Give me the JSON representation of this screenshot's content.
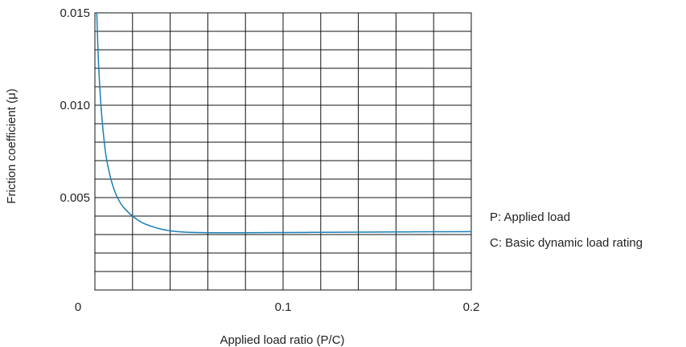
{
  "chart_data": {
    "type": "line",
    "title": "",
    "xlabel": "Applied load ratio (P/C)",
    "ylabel": "Friction coefficient (μ)",
    "xlim": [
      0,
      0.2
    ],
    "ylim": [
      0,
      0.015
    ],
    "x_ticks": [
      {
        "value": 0,
        "label": "0"
      },
      {
        "value": 0.1,
        "label": "0.1"
      },
      {
        "value": 0.2,
        "label": "0.2"
      }
    ],
    "y_ticks": [
      {
        "value": 0.005,
        "label": "0.005"
      },
      {
        "value": 0.01,
        "label": "0.010"
      },
      {
        "value": 0.015,
        "label": "0.015"
      }
    ],
    "grid": true,
    "grid_x_divisions": 10,
    "grid_y_divisions": 15,
    "series": [
      {
        "color": "#1a7fb5",
        "x": [
          0.001,
          0.0015,
          0.002,
          0.003,
          0.004,
          0.005,
          0.006,
          0.008,
          0.01,
          0.012,
          0.015,
          0.02,
          0.025,
          0.03,
          0.035,
          0.04,
          0.045,
          0.05,
          0.06,
          0.08,
          0.1,
          0.12,
          0.14,
          0.16,
          0.18,
          0.2
        ],
        "y": [
          0.015,
          0.0134,
          0.0121,
          0.0103,
          0.009,
          0.008,
          0.0072,
          0.0062,
          0.0055,
          0.005,
          0.0045,
          0.004,
          0.00365,
          0.00345,
          0.0033,
          0.0032,
          0.00315,
          0.00312,
          0.0031,
          0.0031,
          0.00311,
          0.00312,
          0.00313,
          0.00314,
          0.00315,
          0.00316
        ]
      }
    ],
    "annotations": [
      "P: Applied load",
      "C: Basic dynamic load rating"
    ]
  }
}
